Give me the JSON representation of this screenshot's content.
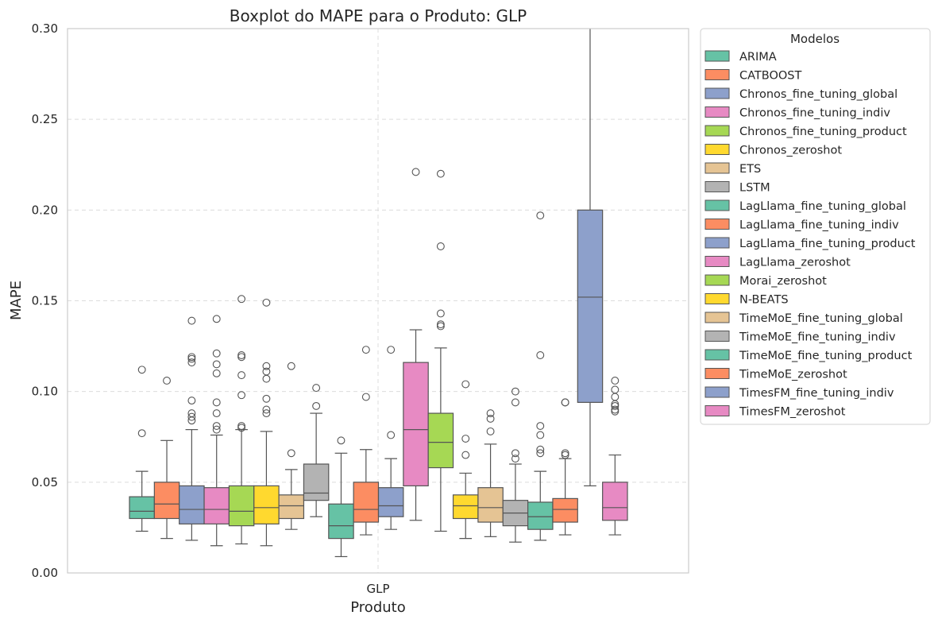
{
  "chart_data": {
    "type": "boxplot",
    "title": "Boxplot do MAPE para o Produto: GLP",
    "xlabel": "Produto",
    "ylabel": "MAPE",
    "categories": [
      "GLP"
    ],
    "ylim": [
      0,
      0.3
    ],
    "yticks": [
      "0.00",
      "0.05",
      "0.10",
      "0.15",
      "0.20",
      "0.25",
      "0.30"
    ],
    "grid": true,
    "legend": {
      "title": "Modelos",
      "placement": "outside-right-top"
    },
    "series": [
      {
        "name": "ARIMA",
        "color": "#66c2a5",
        "whislo": 0.023,
        "q1": 0.03,
        "med": 0.034,
        "q3": 0.042,
        "whishi": 0.056,
        "fliers": [
          0.112,
          0.077
        ]
      },
      {
        "name": "CATBOOST",
        "color": "#fc8d62",
        "whislo": 0.019,
        "q1": 0.03,
        "med": 0.038,
        "q3": 0.05,
        "whishi": 0.073,
        "fliers": [
          0.106
        ]
      },
      {
        "name": "Chronos_fine_tuning_global",
        "color": "#8da0cb",
        "whislo": 0.018,
        "q1": 0.027,
        "med": 0.035,
        "q3": 0.048,
        "whishi": 0.079,
        "fliers": [
          0.139,
          0.119,
          0.118,
          0.116,
          0.095,
          0.088,
          0.086,
          0.084
        ]
      },
      {
        "name": "Chronos_fine_tuning_indiv",
        "color": "#e78ac3",
        "whislo": 0.015,
        "q1": 0.027,
        "med": 0.035,
        "q3": 0.047,
        "whishi": 0.076,
        "fliers": [
          0.14,
          0.121,
          0.115,
          0.11,
          0.094,
          0.088,
          0.081,
          0.079
        ]
      },
      {
        "name": "Chronos_fine_tuning_product",
        "color": "#a6d854",
        "whislo": 0.016,
        "q1": 0.026,
        "med": 0.034,
        "q3": 0.048,
        "whishi": 0.079,
        "fliers": [
          0.151,
          0.12,
          0.119,
          0.109,
          0.098,
          0.081,
          0.08
        ]
      },
      {
        "name": "Chronos_zeroshot",
        "color": "#ffd92f",
        "whislo": 0.015,
        "q1": 0.027,
        "med": 0.036,
        "q3": 0.048,
        "whishi": 0.078,
        "fliers": [
          0.149,
          0.114,
          0.111,
          0.107,
          0.096,
          0.09,
          0.088
        ]
      },
      {
        "name": "ETS",
        "color": "#e5c494",
        "whislo": 0.024,
        "q1": 0.03,
        "med": 0.037,
        "q3": 0.043,
        "whishi": 0.057,
        "fliers": [
          0.114,
          0.066
        ]
      },
      {
        "name": "LSTM",
        "color": "#b3b3b3",
        "whislo": 0.031,
        "q1": 0.04,
        "med": 0.044,
        "q3": 0.06,
        "whishi": 0.088,
        "fliers": [
          0.102,
          0.092
        ]
      },
      {
        "name": "LagLlama_fine_tuning_global",
        "color": "#66c2a5",
        "whislo": 0.009,
        "q1": 0.019,
        "med": 0.026,
        "q3": 0.038,
        "whishi": 0.066,
        "fliers": [
          0.073
        ]
      },
      {
        "name": "LagLlama_fine_tuning_indiv",
        "color": "#fc8d62",
        "whislo": 0.021,
        "q1": 0.028,
        "med": 0.035,
        "q3": 0.05,
        "whishi": 0.068,
        "fliers": [
          0.123,
          0.097
        ]
      },
      {
        "name": "LagLlama_fine_tuning_product",
        "color": "#8da0cb",
        "whislo": 0.024,
        "q1": 0.031,
        "med": 0.037,
        "q3": 0.047,
        "whishi": 0.063,
        "fliers": [
          0.123,
          0.076
        ]
      },
      {
        "name": "LagLlama_zeroshot",
        "color": "#e78ac3",
        "whislo": 0.029,
        "q1": 0.048,
        "med": 0.079,
        "q3": 0.116,
        "whishi": 0.134,
        "fliers": [
          0.221
        ]
      },
      {
        "name": "Morai_zeroshot",
        "color": "#a6d854",
        "whislo": 0.023,
        "q1": 0.058,
        "med": 0.072,
        "q3": 0.088,
        "whishi": 0.124,
        "fliers": [
          0.22,
          0.18,
          0.143,
          0.137,
          0.136
        ]
      },
      {
        "name": "N-BEATS",
        "color": "#ffd92f",
        "whislo": 0.019,
        "q1": 0.03,
        "med": 0.037,
        "q3": 0.043,
        "whishi": 0.055,
        "fliers": [
          0.104,
          0.074,
          0.065
        ]
      },
      {
        "name": "TimeMoE_fine_tuning_global",
        "color": "#e5c494",
        "whislo": 0.02,
        "q1": 0.028,
        "med": 0.036,
        "q3": 0.047,
        "whishi": 0.071,
        "fliers": [
          0.088,
          0.085,
          0.078
        ]
      },
      {
        "name": "TimeMoE_fine_tuning_indiv",
        "color": "#b3b3b3",
        "whislo": 0.017,
        "q1": 0.026,
        "med": 0.033,
        "q3": 0.04,
        "whishi": 0.06,
        "fliers": [
          0.1,
          0.094,
          0.066,
          0.063
        ]
      },
      {
        "name": "TimeMoE_fine_tuning_product",
        "color": "#66c2a5",
        "whislo": 0.018,
        "q1": 0.024,
        "med": 0.031,
        "q3": 0.039,
        "whishi": 0.056,
        "fliers": [
          0.197,
          0.12,
          0.081,
          0.076,
          0.068,
          0.066
        ]
      },
      {
        "name": "TimeMoE_zeroshot",
        "color": "#fc8d62",
        "whislo": 0.021,
        "q1": 0.028,
        "med": 0.035,
        "q3": 0.041,
        "whishi": 0.063,
        "fliers": [
          0.094,
          0.094,
          0.066,
          0.065
        ]
      },
      {
        "name": "TimesFM_fine_tuning_indiv",
        "color": "#8da0cb",
        "whislo": 0.048,
        "q1": 0.094,
        "med": 0.152,
        "q3": 0.2,
        "whishi": 0.305,
        "fliers": []
      },
      {
        "name": "TimesFM_zeroshot",
        "color": "#e78ac3",
        "whislo": 0.021,
        "q1": 0.029,
        "med": 0.036,
        "q3": 0.05,
        "whishi": 0.065,
        "fliers": [
          0.106,
          0.101,
          0.097,
          0.093,
          0.092,
          0.09,
          0.089
        ]
      }
    ]
  }
}
